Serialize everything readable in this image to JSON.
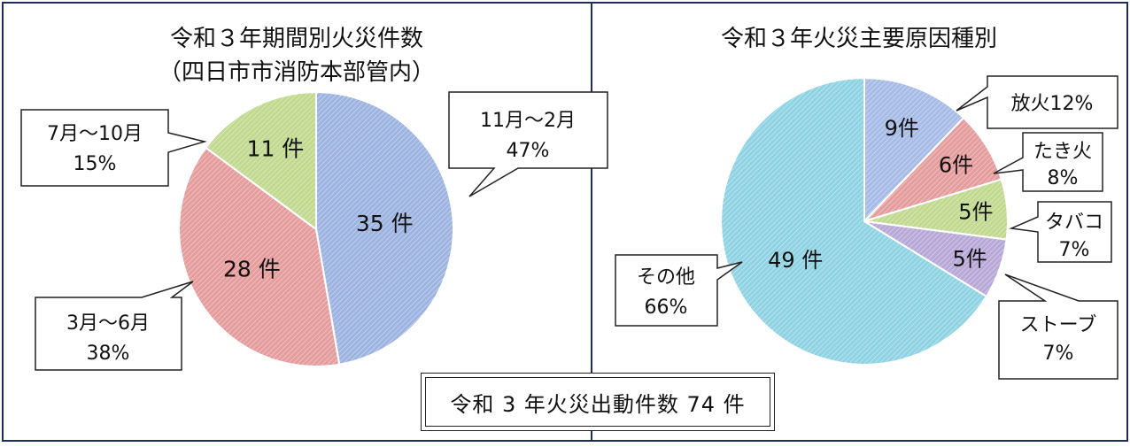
{
  "chart_data": [
    {
      "type": "pie",
      "title": "令和３年期間別火災件数",
      "subtitle": "（四日市市消防本部管内）",
      "slices": [
        {
          "label": "11月～2月",
          "value": 35,
          "value_text": "35 件",
          "percent": "47%",
          "color": "#9db3e0"
        },
        {
          "label": "3月～6月",
          "value": 28,
          "value_text": "28 件",
          "percent": "38%",
          "color": "#e59c9c"
        },
        {
          "label": "7月～10月",
          "value": 11,
          "value_text": "11 件",
          "percent": "15%",
          "color": "#c1d98f"
        }
      ]
    },
    {
      "type": "pie",
      "title": "令和３年火災主要原因種別",
      "slices": [
        {
          "label": "放火",
          "value": 9,
          "value_text": "9件",
          "percent_text": "放火12%",
          "color": "#a6bbe6"
        },
        {
          "label": "たき火",
          "value": 6,
          "value_text": "6件",
          "percent_text": "8%",
          "color": "#e59c9c"
        },
        {
          "label": "タバコ",
          "value": 5,
          "value_text": "5件",
          "percent_text": "7%",
          "color": "#c1d98f"
        },
        {
          "label": "ストーブ",
          "value": 5,
          "value_text": "5件",
          "percent_text": "7%",
          "color": "#b7a8d8"
        },
        {
          "label": "その他",
          "value": 49,
          "value_text": "49 件",
          "percent_text": "66%",
          "color": "#8fd3e3"
        }
      ]
    }
  ],
  "summary": "令和 3 年火災出動件数 74 件"
}
